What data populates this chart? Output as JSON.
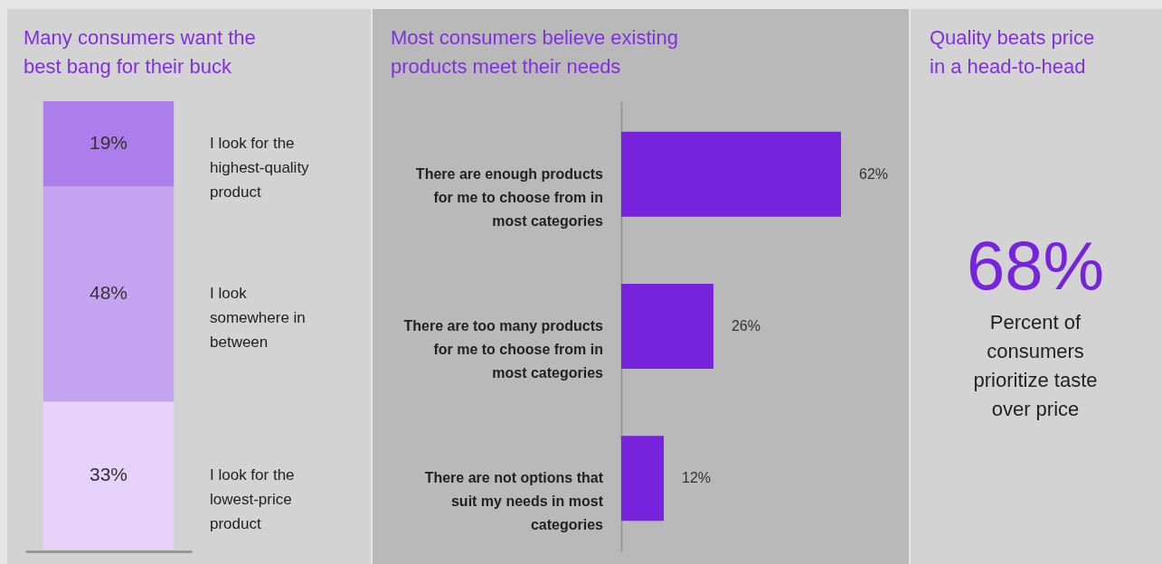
{
  "chart_data": [
    {
      "type": "bar",
      "title": "Many consumers want the best bang for their buck",
      "categories": [
        null
      ],
      "stacked": true,
      "series": [
        {
          "name": "I look for the lowest-price product",
          "color": "#e6d2fb",
          "values": [
            33
          ],
          "value_labels": [
            "33%"
          ]
        },
        {
          "name": "I look somewhere in between",
          "color": "#c6a3f0",
          "values": [
            48
          ],
          "value_labels": [
            "48%"
          ]
        },
        {
          "name": "I look for the highest-quality product",
          "color": "#ad7deb",
          "values": [
            19
          ],
          "value_labels": [
            "19%"
          ]
        }
      ]
    },
    {
      "type": "bar",
      "title": "Most consumers believe existing products meet their needs",
      "orientation": "horizontal",
      "categories": [
        "There are enough products for me to choose from in most categories",
        "There are too many products for me to choose from in most categories",
        "There are not options that suit my needs in most categories"
      ],
      "values": [
        62,
        26,
        12
      ],
      "color": "#7722dd",
      "value_labels": [
        "62%",
        "26%",
        "12%"
      ]
    },
    {
      "type": "other",
      "title": "Quality beats price in a head-to-head",
      "annotations": [
        "68%",
        "Percent of consumers prioritize taste over price"
      ]
    }
  ]
}
